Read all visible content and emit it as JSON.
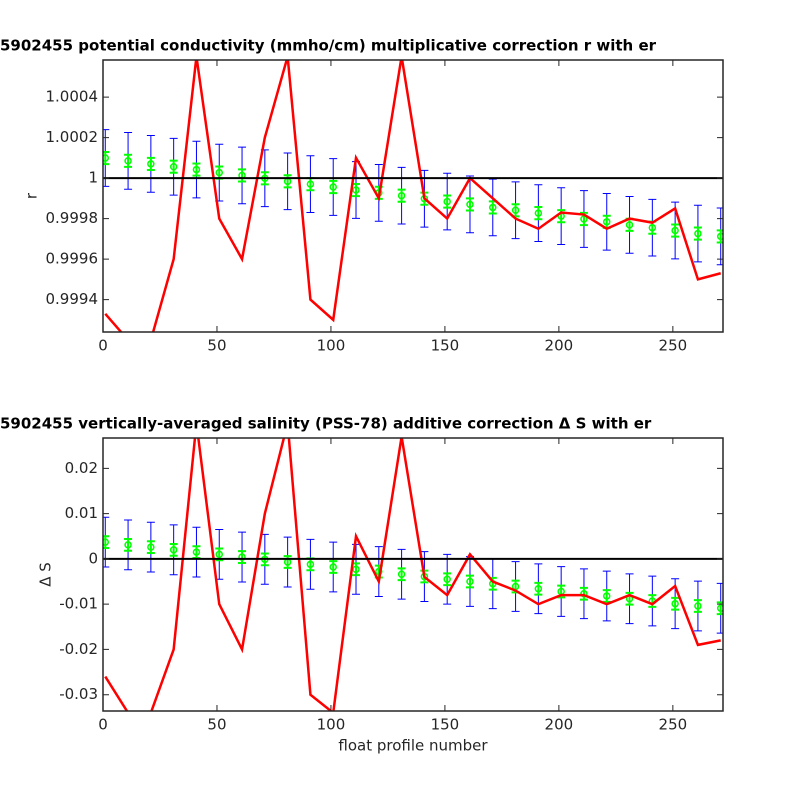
{
  "chart_data": [
    {
      "type": "line",
      "title": "5902455 potential conductivity (mmho/cm) multiplicative correction r with er",
      "ylabel": "r",
      "x": [
        1,
        11,
        21,
        31,
        41,
        51,
        61,
        71,
        81,
        91,
        101,
        111,
        121,
        131,
        141,
        151,
        161,
        171,
        181,
        191,
        201,
        211,
        221,
        231,
        241,
        251,
        261,
        271
      ],
      "xlim": [
        0,
        272
      ],
      "xticks": [
        0,
        50,
        100,
        150,
        200,
        250
      ],
      "ylim": [
        0.99924,
        1.000583
      ],
      "yticks": [
        0.9994,
        0.9996,
        0.9998,
        1,
        1.0002,
        1.0004
      ],
      "hline": 1,
      "series": [
        {
          "color": "#0000ff",
          "error": 0.00014,
          "values": [
            1.000099,
            1.000085,
            1.00007,
            1.000056,
            1.000042,
            1.000027,
            1.000013,
            0.999999,
            0.999984,
            0.99997,
            0.999956,
            0.999941,
            0.999927,
            0.999913,
            0.999898,
            0.999884,
            0.99987,
            0.999855,
            0.999841,
            0.999827,
            0.999812,
            0.999798,
            0.999784,
            0.999769,
            0.999755,
            0.999741,
            0.999726,
            0.999712
          ]
        },
        {
          "color": "#00ff00",
          "error": 3e-05,
          "values": [
            1.000099,
            1.000085,
            1.00007,
            1.000056,
            1.000042,
            1.000027,
            1.000013,
            0.999999,
            0.999984,
            0.99997,
            0.999956,
            0.999941,
            0.999927,
            0.999913,
            0.999898,
            0.999884,
            0.99987,
            0.999855,
            0.999841,
            0.999827,
            0.999812,
            0.999798,
            0.999784,
            0.999769,
            0.999755,
            0.999741,
            0.999726,
            0.999712
          ]
        },
        {
          "color": "#ff0000",
          "values": [
            0.99933,
            0.9992,
            0.9992,
            0.9996,
            1.0006,
            0.9998,
            0.9996,
            1.0002,
            1.0006,
            0.9994,
            0.9993,
            1.0001,
            0.9999,
            1.0006,
            0.9999,
            0.9998,
            1.0,
            0.9999,
            0.9998,
            0.99975,
            0.99983,
            0.99982,
            0.99975,
            0.9998,
            0.99978,
            0.99985,
            0.9995,
            0.99953
          ]
        }
      ]
    },
    {
      "type": "line",
      "title": "5902455 vertically-averaged salinity (PSS-78) additive correction Δ S with er",
      "ylabel": "Δ S",
      "xlabel": "float profile number",
      "x": [
        1,
        11,
        21,
        31,
        41,
        51,
        61,
        71,
        81,
        91,
        101,
        111,
        121,
        131,
        141,
        151,
        161,
        171,
        181,
        191,
        201,
        211,
        221,
        231,
        241,
        251,
        261,
        271
      ],
      "xlim": [
        0,
        272
      ],
      "xticks": [
        0,
        50,
        100,
        150,
        200,
        250
      ],
      "ylim": [
        -0.0336,
        0.0267
      ],
      "yticks": [
        -0.03,
        -0.02,
        -0.01,
        0,
        0.01,
        0.02
      ],
      "hline": 0,
      "series": [
        {
          "color": "#0000ff",
          "error": 0.0055,
          "values": [
            0.0037,
            0.0031,
            0.0026,
            0.002,
            0.0015,
            0.001,
            0.0004,
            -0.0001,
            -0.0007,
            -0.0012,
            -0.0018,
            -0.0023,
            -0.0028,
            -0.0034,
            -0.0039,
            -0.0045,
            -0.005,
            -0.0055,
            -0.0061,
            -0.0066,
            -0.0072,
            -0.0077,
            -0.0082,
            -0.0088,
            -0.0093,
            -0.0099,
            -0.0104,
            -0.0109
          ]
        },
        {
          "color": "#00ff00",
          "error": 0.0013,
          "values": [
            0.0037,
            0.0031,
            0.0026,
            0.002,
            0.0015,
            0.001,
            0.0004,
            -0.0001,
            -0.0007,
            -0.0012,
            -0.0018,
            -0.0023,
            -0.0028,
            -0.0034,
            -0.0039,
            -0.0045,
            -0.005,
            -0.0055,
            -0.0061,
            -0.0066,
            -0.0072,
            -0.0077,
            -0.0082,
            -0.0088,
            -0.0093,
            -0.0099,
            -0.0104,
            -0.0109
          ]
        },
        {
          "color": "#ff0000",
          "values": [
            -0.026,
            -0.034,
            -0.034,
            -0.02,
            0.03,
            -0.01,
            -0.02,
            0.01,
            0.03,
            -0.03,
            -0.034,
            0.005,
            -0.005,
            0.027,
            -0.004,
            -0.008,
            0.001,
            -0.005,
            -0.007,
            -0.01,
            -0.008,
            -0.008,
            -0.01,
            -0.008,
            -0.01,
            -0.006,
            -0.019,
            -0.018
          ]
        }
      ]
    }
  ]
}
